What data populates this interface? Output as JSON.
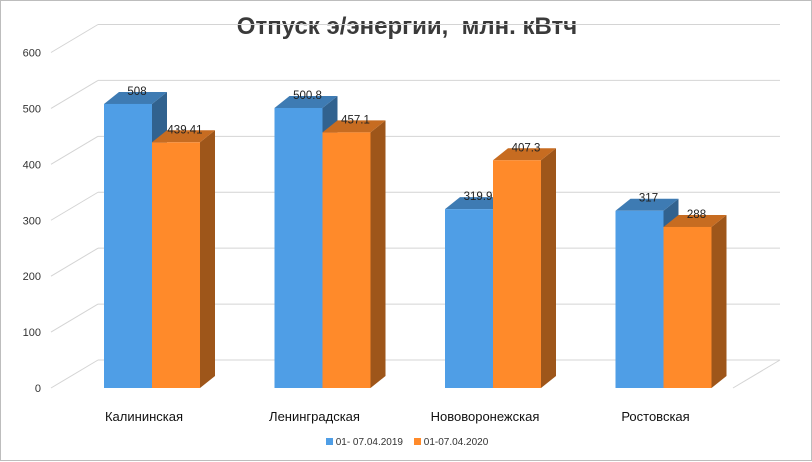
{
  "chart_data": {
    "type": "bar",
    "title": "Отпуск э/энергии,  млн. кВтч",
    "xlabel": "",
    "ylabel": "",
    "categories": [
      "Калининская",
      "Ленинградская",
      "Нововоронежская",
      "Ростовская"
    ],
    "series": [
      {
        "name": "01- 07.04.2019",
        "values": [
          508,
          500.8,
          319.9,
          317
        ],
        "labels": [
          "508",
          "500.8",
          "319.9",
          "317"
        ],
        "color": "#4f9ee6"
      },
      {
        "name": "01-07.04.2020",
        "values": [
          439.41,
          457.1,
          407.3,
          288
        ],
        "labels": [
          "439.41",
          "457.1",
          "407.3",
          "288"
        ],
        "color": "#ff8a2a"
      }
    ],
    "ylim": [
      0,
      600
    ],
    "yticks": [
      0,
      100,
      200,
      300,
      400,
      500,
      600
    ],
    "grid": true,
    "legend": "bottom",
    "style": "3d-clustered-column"
  }
}
